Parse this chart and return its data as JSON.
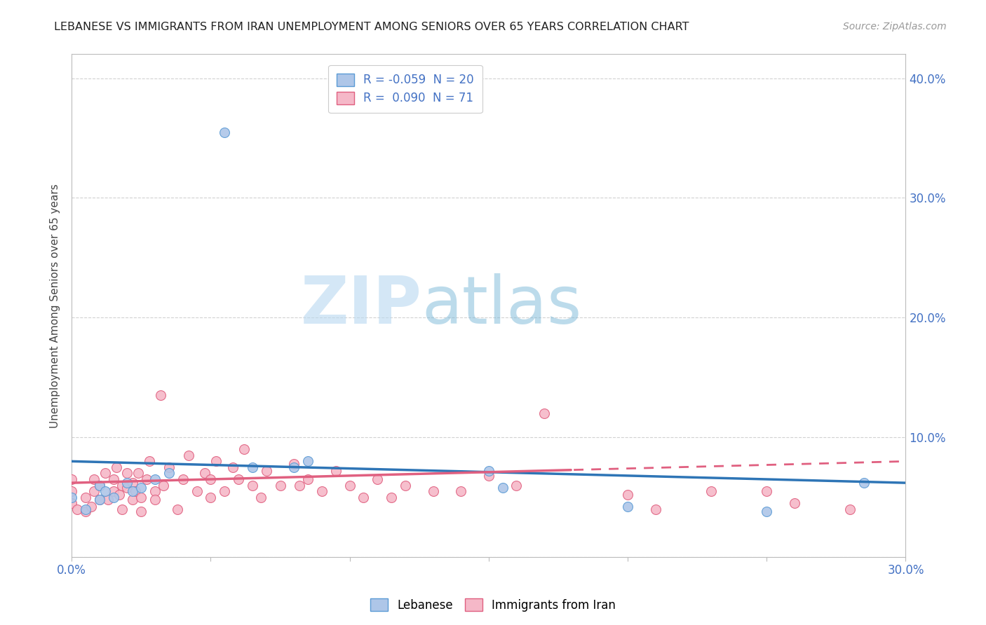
{
  "title": "LEBANESE VS IMMIGRANTS FROM IRAN UNEMPLOYMENT AMONG SENIORS OVER 65 YEARS CORRELATION CHART",
  "source": "Source: ZipAtlas.com",
  "ylabel": "Unemployment Among Seniors over 65 years",
  "xlim": [
    0.0,
    0.3
  ],
  "ylim": [
    0.0,
    0.42
  ],
  "xticks": [
    0.0,
    0.05,
    0.1,
    0.15,
    0.2,
    0.25,
    0.3
  ],
  "xticklabels": [
    "0.0%",
    "",
    "",
    "",
    "",
    "",
    "30.0%"
  ],
  "yticks": [
    0.0,
    0.1,
    0.2,
    0.3,
    0.4
  ],
  "yticklabels_right": [
    "",
    "10.0%",
    "20.0%",
    "30.0%",
    "40.0%"
  ],
  "legend_R_leb": "-0.059",
  "legend_N_leb": "20",
  "legend_R_iran": "0.090",
  "legend_N_iran": "71",
  "leb_color": "#aec6e8",
  "iran_color": "#f5b8c8",
  "leb_edge_color": "#5b9bd5",
  "iran_edge_color": "#e06080",
  "leb_line_color": "#2e75b6",
  "iran_line_color": "#e06080",
  "watermark_zip": "ZIP",
  "watermark_atlas": "atlas",
  "background_color": "#ffffff",
  "tick_color": "#4472c4",
  "grid_color": "#cccccc"
}
